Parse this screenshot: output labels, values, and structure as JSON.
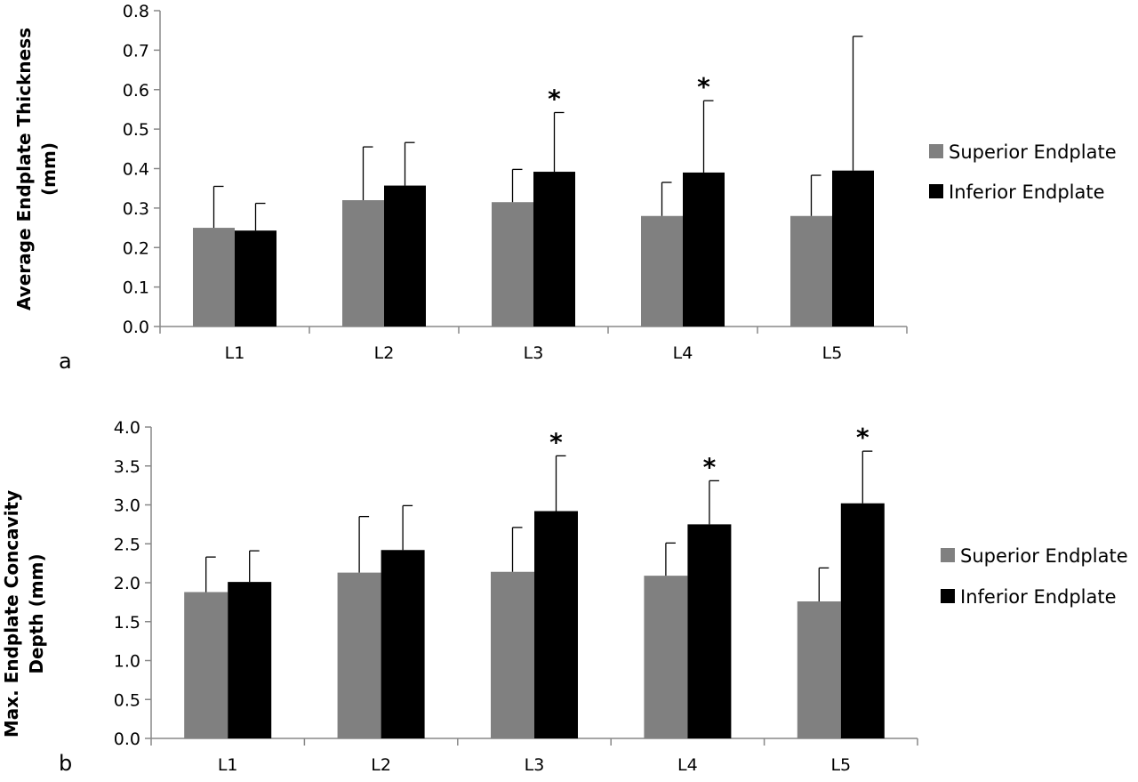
{
  "chart_data": [
    {
      "type": "bar",
      "panel_label": "a",
      "ylabel_lines": [
        "Average Endplate Thickness",
        "(mm)"
      ],
      "categories": [
        "L1",
        "L2",
        "L3",
        "L4",
        "L5"
      ],
      "ylim": [
        0,
        0.8
      ],
      "yticks": [
        0.0,
        0.1,
        0.2,
        0.3,
        0.4,
        0.5,
        0.6,
        0.7,
        0.8
      ],
      "tick_decimals": 1,
      "legend_position": "right",
      "significance_marker": "*",
      "series": [
        {
          "name": "Superior Endplate",
          "color": "#808080",
          "values": [
            0.25,
            0.32,
            0.315,
            0.28,
            0.28
          ],
          "error_upper": [
            0.355,
            0.455,
            0.398,
            0.365,
            0.383
          ],
          "significant": [
            false,
            false,
            false,
            false,
            false
          ]
        },
        {
          "name": "Inferior Endplate",
          "color": "#000000",
          "values": [
            0.243,
            0.357,
            0.392,
            0.39,
            0.395
          ],
          "error_upper": [
            0.312,
            0.466,
            0.542,
            0.572,
            0.735
          ],
          "significant": [
            false,
            false,
            true,
            true,
            false
          ]
        }
      ]
    },
    {
      "type": "bar",
      "panel_label": "b",
      "ylabel_lines": [
        "Max. Endplate Concavity",
        "Depth (mm)"
      ],
      "categories": [
        "L1",
        "L2",
        "L3",
        "L4",
        "L5"
      ],
      "ylim": [
        0,
        4.0
      ],
      "yticks": [
        0.0,
        0.5,
        1.0,
        1.5,
        2.0,
        2.5,
        3.0,
        3.5,
        4.0
      ],
      "tick_decimals": 1,
      "legend_position": "right",
      "significance_marker": "*",
      "series": [
        {
          "name": "Superior Endplate",
          "color": "#808080",
          "values": [
            1.88,
            2.13,
            2.14,
            2.09,
            1.76
          ],
          "error_upper": [
            2.33,
            2.85,
            2.71,
            2.51,
            2.19
          ],
          "significant": [
            false,
            false,
            false,
            false,
            false
          ]
        },
        {
          "name": "Inferior Endplate",
          "color": "#000000",
          "values": [
            2.01,
            2.42,
            2.92,
            2.75,
            3.02
          ],
          "error_upper": [
            2.41,
            2.99,
            3.63,
            3.31,
            3.69
          ],
          "significant": [
            false,
            false,
            true,
            true,
            true
          ]
        }
      ]
    }
  ]
}
